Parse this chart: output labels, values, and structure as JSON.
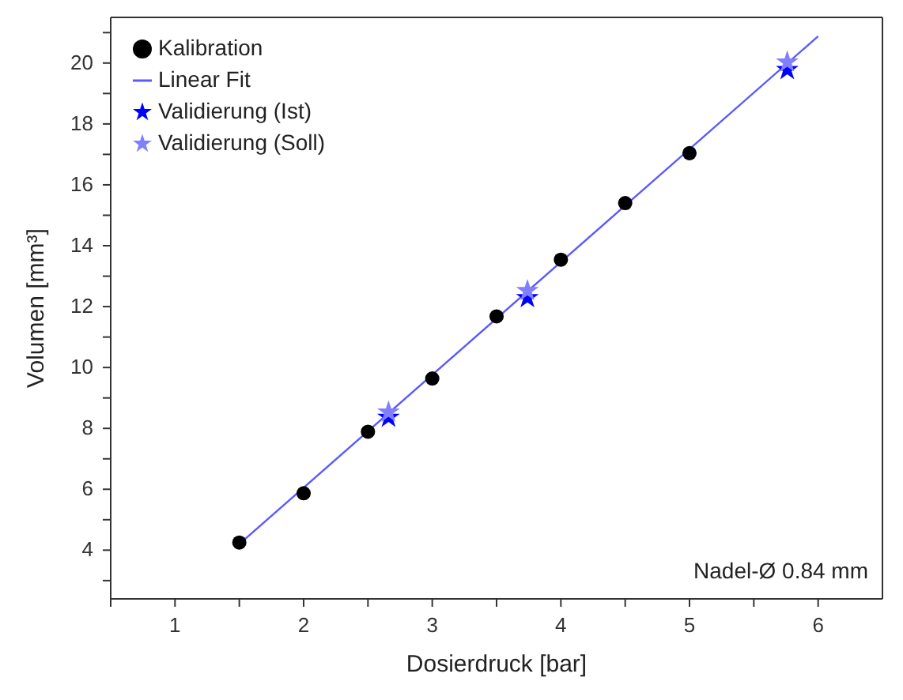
{
  "chart_data": {
    "type": "scatter",
    "xlabel": "Dosierdruck [bar]",
    "ylabel": "Volumen [mm³]",
    "xlim": [
      0.5,
      6.5
    ],
    "ylim": [
      2.4,
      21.5
    ],
    "xticks": [
      {
        "value": 0.5,
        "label": null
      },
      1,
      {
        "value": 1.5,
        "label": null
      },
      2,
      {
        "value": 2.5,
        "label": null
      },
      3,
      {
        "value": 3.5,
        "label": null
      },
      4,
      {
        "value": 4.5,
        "label": null
      },
      5,
      {
        "value": 5.5,
        "label": null
      },
      6
    ],
    "yticks": [
      {
        "value": 3,
        "label": null
      },
      4,
      {
        "value": 5,
        "label": null
      },
      6,
      {
        "value": 7,
        "label": null
      },
      8,
      {
        "value": 9,
        "label": null
      },
      10,
      {
        "value": 11,
        "label": null
      },
      12,
      {
        "value": 13,
        "label": null
      },
      14,
      {
        "value": 15,
        "label": null
      },
      16,
      {
        "value": 17,
        "label": null
      },
      18,
      {
        "value": 19,
        "label": null
      },
      20,
      {
        "value": 21,
        "label": null
      }
    ],
    "legend": "top left",
    "grid": false,
    "annotations": [
      "Nadel-Ø 0.84 mm"
    ],
    "series": [
      {
        "name": "Kalibration",
        "marker": "circle",
        "color": "#000000",
        "x": [
          1.5,
          2,
          2.5,
          3,
          3.5,
          4,
          4.5,
          5
        ],
        "values": [
          4.25,
          5.87,
          7.89,
          9.64,
          11.68,
          13.54,
          15.4,
          17.04
        ]
      },
      {
        "name": "Linear Fit",
        "type": "line",
        "marker": "none",
        "line_style": "solid",
        "color": "#5a5aff",
        "x": [
          1.5,
          6
        ],
        "values": [
          4.2,
          20.88
        ]
      },
      {
        "name": "Validierung (Ist)",
        "marker": "star",
        "color": "#0000ff",
        "x": [
          2.66,
          3.74,
          5.76
        ],
        "values": [
          8.36,
          12.29,
          19.78
        ]
      },
      {
        "name": "Validierung (Soll)",
        "marker": "star",
        "color": "#8080ff",
        "x": [
          2.66,
          3.74,
          5.76
        ],
        "values": [
          8.53,
          12.52,
          20.03
        ]
      }
    ]
  }
}
